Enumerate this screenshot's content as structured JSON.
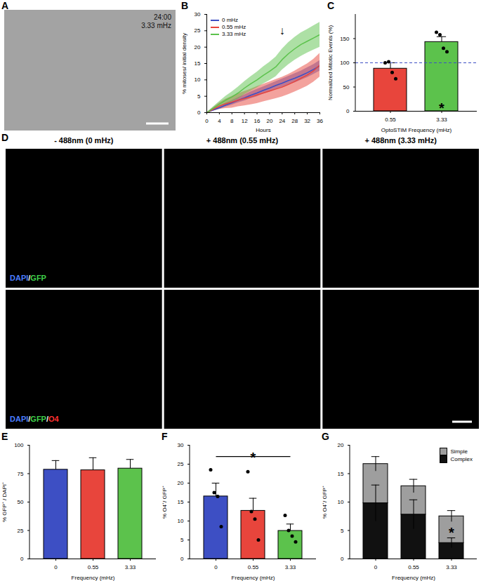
{
  "figure_panels": [
    {
      "title": "A",
      "type": "image",
      "texts": [
        "24:00",
        "3.33 mHz"
      ]
    },
    {
      "title": "D",
      "type": "image_grid",
      "columns": [
        "- 488nm (0 mHz)",
        "+ 488nm (0.55 mHz)",
        "+ 488nm (3.33 mHz)"
      ],
      "row_labels": [
        [
          {
            "text": "DAPI",
            "color": "#4a7dff"
          },
          {
            "text": "/",
            "color": "#ffffff"
          },
          {
            "text": "GFP",
            "color": "#3fd14a"
          }
        ],
        [
          {
            "text": "DAPI",
            "color": "#4a7dff"
          },
          {
            "text": "/",
            "color": "#ffffff"
          },
          {
            "text": "GFP",
            "color": "#3fd14a"
          },
          {
            "text": "/",
            "color": "#ffffff"
          },
          {
            "text": "O4",
            "color": "#ff3030"
          }
        ]
      ]
    }
  ],
  "chart_data": [
    {
      "title": "B",
      "type": "line",
      "x_label": "Hours",
      "y_label": "% mitoses/ initial density",
      "x": [
        0,
        2,
        4,
        6,
        8,
        10,
        12,
        14,
        16,
        18,
        20,
        22,
        24,
        26,
        28,
        30,
        32,
        34,
        36
      ],
      "xlim": [
        0,
        36
      ],
      "xticks": [
        0,
        4,
        8,
        12,
        16,
        20,
        24,
        28,
        32,
        36
      ],
      "ylim": [
        0,
        30
      ],
      "yticks": [
        0,
        5,
        10,
        15,
        20,
        25,
        30
      ],
      "legend": "top-left",
      "series": [
        {
          "name": "0 mHz",
          "color": "#3d4fc4",
          "values": [
            0,
            0.8,
            1.5,
            2.3,
            3.0,
            3.8,
            4.5,
            5.3,
            6.0,
            6.8,
            7.5,
            8.3,
            9.0,
            9.8,
            10.5,
            11.3,
            12.2,
            13.2,
            14.3
          ],
          "errors": [
            0,
            0.3,
            0.5,
            0.6,
            0.7,
            0.8,
            0.9,
            1.0,
            1.1,
            1.1,
            1.2,
            1.2,
            1.3,
            1.3,
            1.4,
            1.4,
            1.5,
            1.5,
            1.6
          ]
        },
        {
          "name": "0.55 mHz",
          "color": "#e8453c",
          "values": [
            0,
            1.0,
            2.0,
            2.7,
            3.2,
            3.8,
            4.3,
            4.8,
            5.4,
            6.0,
            6.6,
            7.2,
            7.8,
            8.6,
            9.5,
            10.5,
            11.5,
            12.8,
            14.5
          ],
          "errors": [
            0,
            0.5,
            1.0,
            1.4,
            1.8,
            2.0,
            2.2,
            2.4,
            2.6,
            2.7,
            2.8,
            2.9,
            3.0,
            3.1,
            3.2,
            3.3,
            3.4,
            3.5,
            3.6
          ]
        },
        {
          "name": "3.33 mHz",
          "color": "#5cc24c",
          "values": [
            0,
            1.3,
            2.6,
            3.8,
            4.8,
            6.0,
            7.5,
            8.8,
            10.0,
            11.4,
            12.6,
            14.0,
            16.2,
            18.0,
            19.5,
            20.8,
            21.8,
            22.8,
            23.8
          ],
          "errors": [
            0,
            0.4,
            0.8,
            1.2,
            1.5,
            1.8,
            2.0,
            2.2,
            2.4,
            2.6,
            2.8,
            3.0,
            3.2,
            3.4,
            3.5,
            3.6,
            3.6,
            3.7,
            3.8
          ]
        }
      ],
      "annotations": [
        {
          "x": 24,
          "y": 25,
          "text": "↓"
        }
      ]
    },
    {
      "title": "C",
      "type": "bar",
      "x_label": "OptoSTIM Frequency (mHz)",
      "y_label": "Normalized Mitotic Events (%)",
      "categories": [
        "0.55",
        "3.33"
      ],
      "values": [
        88,
        143
      ],
      "errors": [
        12,
        11
      ],
      "colors": [
        "#e8453c",
        "#5cc24c"
      ],
      "points": [
        [
          100,
          102,
          80,
          67
        ],
        [
          163,
          158,
          130,
          123
        ]
      ],
      "reference_line": 100,
      "ylim": [
        0,
        200
      ],
      "yticks": [
        0,
        50,
        100,
        150
      ],
      "annotations": [
        {
          "x": "3.33",
          "y": 12,
          "text": "*"
        }
      ]
    },
    {
      "title": "E",
      "type": "bar",
      "x_label": "Frequency (mHz)",
      "y_label": "% GFP⁺ / DAPI⁺",
      "categories": [
        "0",
        "0.55",
        "3.33"
      ],
      "values": [
        78.5,
        78,
        79.5
      ],
      "errors": [
        8,
        11,
        8
      ],
      "colors": [
        "#3d4fc4",
        "#e8453c",
        "#5cc24c"
      ],
      "ylim": [
        0,
        100
      ],
      "yticks": [
        0,
        25,
        50,
        75,
        100
      ]
    },
    {
      "title": "F",
      "type": "bar",
      "x_label": "Frequency (mHz)",
      "y_label": "% O4⁺/ GFP⁺",
      "categories": [
        "0",
        "0.55",
        "3.33"
      ],
      "values": [
        16.5,
        12.7,
        7.4
      ],
      "errors": [
        3.5,
        3.3,
        1.8
      ],
      "colors": [
        "#3d4fc4",
        "#e8453c",
        "#5cc24c"
      ],
      "points": [
        [
          23.5,
          17.5,
          16.5,
          8.5
        ],
        [
          23,
          12.5,
          10.5,
          5
        ],
        [
          11.5,
          7.5,
          6,
          4.5
        ]
      ],
      "ylim": [
        0,
        30
      ],
      "yticks": [
        0,
        5,
        10,
        15,
        20,
        25,
        30
      ],
      "annotations": [
        {
          "x1": "0",
          "x2": "3.33",
          "y": 27,
          "text": "*"
        }
      ]
    },
    {
      "title": "G",
      "type": "bar",
      "stacked": true,
      "x_label": "Frequency (mHz)",
      "y_label": "% O4⁺/ GFP⁺",
      "categories": [
        "0",
        "0.55",
        "3.33"
      ],
      "series": [
        {
          "name": "Complex",
          "color": "#111111",
          "values": [
            9.8,
            7.8,
            2.8
          ],
          "errors": [
            3.2,
            2.6,
            0.9
          ]
        },
        {
          "name": "Simple",
          "color": "#9e9e9e",
          "values": [
            6.9,
            5.0,
            4.7
          ],
          "errors": [
            1.3,
            1.2,
            1.0
          ]
        }
      ],
      "legend": "top-right",
      "ylim": [
        0,
        20
      ],
      "yticks": [
        0,
        5,
        10,
        15,
        20
      ],
      "annotations": [
        {
          "x": "3.33",
          "y": 5,
          "text": "*"
        }
      ]
    }
  ]
}
